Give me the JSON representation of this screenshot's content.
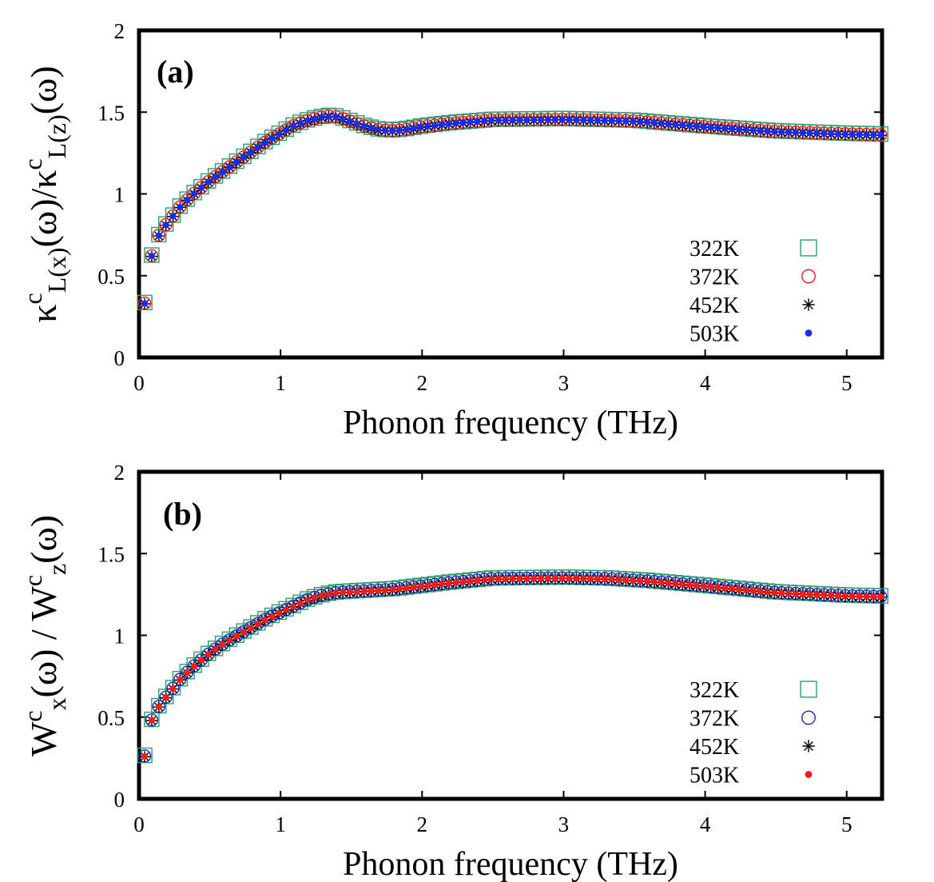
{
  "chart_data": [
    {
      "type": "scatter",
      "panel_label": "(a)",
      "xlabel": "Phonon frequency (THz)",
      "ylabel": {
        "parts": [
          {
            "t": "κ"
          },
          {
            "t": "c",
            "sup": true
          },
          {
            "t": "L(x)",
            "sub": true
          },
          {
            "t": "(ω)/κ"
          },
          {
            "t": "c",
            "sup": true
          },
          {
            "t": "L(z)",
            "sub": true
          },
          {
            "t": "(ω)"
          }
        ]
      },
      "xlim": [
        0,
        5.25
      ],
      "ylim": [
        0,
        2
      ],
      "xticks": [
        0,
        1,
        2,
        3,
        4,
        5
      ],
      "yticks": [
        0,
        0.5,
        1,
        1.5,
        2
      ],
      "xtick_labels": [
        "0",
        "1",
        "2",
        "3",
        "4",
        "5"
      ],
      "ytick_labels": [
        "0",
        "0.5",
        "1",
        "1.5",
        "2"
      ],
      "legend_position": "bottom-right",
      "x_start": 0.04,
      "x_step": 0.05,
      "n_points": 105,
      "curve_knots": [
        [
          0.04,
          0.33
        ],
        [
          0.09,
          0.62
        ],
        [
          0.15,
          0.77
        ],
        [
          0.2,
          0.82
        ],
        [
          0.3,
          0.93
        ],
        [
          0.4,
          1.01
        ],
        [
          0.5,
          1.08
        ],
        [
          0.6,
          1.14
        ],
        [
          0.7,
          1.2
        ],
        [
          0.8,
          1.26
        ],
        [
          0.9,
          1.32
        ],
        [
          1.0,
          1.37
        ],
        [
          1.1,
          1.42
        ],
        [
          1.2,
          1.45
        ],
        [
          1.3,
          1.47
        ],
        [
          1.35,
          1.475
        ],
        [
          1.4,
          1.47
        ],
        [
          1.5,
          1.44
        ],
        [
          1.6,
          1.41
        ],
        [
          1.7,
          1.39
        ],
        [
          1.8,
          1.385
        ],
        [
          1.9,
          1.395
        ],
        [
          2.0,
          1.41
        ],
        [
          2.2,
          1.43
        ],
        [
          2.5,
          1.45
        ],
        [
          3.0,
          1.455
        ],
        [
          3.5,
          1.445
        ],
        [
          4.0,
          1.41
        ],
        [
          4.5,
          1.38
        ],
        [
          5.0,
          1.365
        ],
        [
          5.25,
          1.36
        ]
      ],
      "series": [
        {
          "name": "322K",
          "marker": "square",
          "color": "#2e9e6e",
          "y_offset": 0.006
        },
        {
          "name": "372K",
          "marker": "circle",
          "color": "#e02020",
          "y_offset": 0.002
        },
        {
          "name": "452K",
          "marker": "star",
          "color": "#000000",
          "y_offset": -0.002
        },
        {
          "name": "503K",
          "marker": "dot",
          "color": "#1a2bff",
          "y_offset": 0.0
        }
      ]
    },
    {
      "type": "scatter",
      "panel_label": "(b)",
      "xlabel": "Phonon frequency (THz)",
      "ylabel": {
        "parts": [
          {
            "t": "W"
          },
          {
            "t": "c",
            "sup": true
          },
          {
            "t": "x",
            "sub": true
          },
          {
            "t": "(ω) / W"
          },
          {
            "t": "c",
            "sup": true
          },
          {
            "t": "z",
            "sub": true
          },
          {
            "t": "(ω)"
          }
        ]
      },
      "xlim": [
        0,
        5.25
      ],
      "ylim": [
        0,
        2
      ],
      "xticks": [
        0,
        1,
        2,
        3,
        4,
        5
      ],
      "yticks": [
        0,
        0.5,
        1,
        1.5,
        2
      ],
      "xtick_labels": [
        "0",
        "1",
        "2",
        "3",
        "4",
        "5"
      ],
      "ytick_labels": [
        "0",
        "0.5",
        "1",
        "1.5",
        "2"
      ],
      "legend_position": "bottom-right",
      "x_start": 0.04,
      "x_step": 0.05,
      "n_points": 105,
      "curve_knots": [
        [
          0.04,
          0.26
        ],
        [
          0.09,
          0.48
        ],
        [
          0.15,
          0.58
        ],
        [
          0.2,
          0.63
        ],
        [
          0.3,
          0.74
        ],
        [
          0.4,
          0.82
        ],
        [
          0.5,
          0.89
        ],
        [
          0.6,
          0.95
        ],
        [
          0.7,
          1.0
        ],
        [
          0.8,
          1.05
        ],
        [
          0.9,
          1.1
        ],
        [
          1.0,
          1.14
        ],
        [
          1.1,
          1.18
        ],
        [
          1.2,
          1.22
        ],
        [
          1.3,
          1.245
        ],
        [
          1.4,
          1.26
        ],
        [
          1.6,
          1.27
        ],
        [
          1.8,
          1.28
        ],
        [
          2.0,
          1.3
        ],
        [
          2.2,
          1.32
        ],
        [
          2.5,
          1.345
        ],
        [
          3.0,
          1.35
        ],
        [
          3.3,
          1.345
        ],
        [
          3.6,
          1.33
        ],
        [
          4.0,
          1.3
        ],
        [
          4.5,
          1.26
        ],
        [
          5.0,
          1.24
        ],
        [
          5.25,
          1.235
        ]
      ],
      "series": [
        {
          "name": "322K",
          "marker": "square",
          "color": "#2e9e6e",
          "y_offset": 0.006
        },
        {
          "name": "372K",
          "marker": "circle",
          "color": "#1f2bb5",
          "y_offset": 0.002
        },
        {
          "name": "452K",
          "marker": "star",
          "color": "#000000",
          "y_offset": -0.002
        },
        {
          "name": "503K",
          "marker": "dot",
          "color": "#ff1a1a",
          "y_offset": 0.0
        }
      ]
    }
  ]
}
